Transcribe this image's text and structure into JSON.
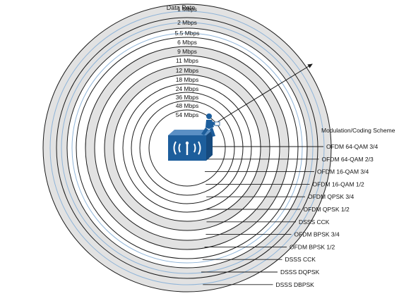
{
  "diagram": {
    "title": "Data Rate",
    "scheme_heading": "Modulation/Coding Scheme",
    "colors": {
      "band_shade": "#e2e2e2",
      "band_blue_line": "#8fb4d8",
      "ring_line": "#1a1a1a",
      "access_point": "#1d5e9c",
      "client": "#1d5e9c"
    },
    "icons": {
      "access_point": "wireless-access-point-icon",
      "client": "mobile-client-icon"
    },
    "rates": [
      "1 Mbps",
      "2 Mbps",
      "5.5 Mbps",
      "6 Mbps",
      "9 Mbps",
      "11 Mbps",
      "12 Mbps",
      "18 Mbps",
      "24 Mbps",
      "36 Mbps",
      "48 Mbps",
      "54 Mbps"
    ],
    "schemes": [
      "OFDM 64-QAM 3/4",
      "OFDM 64-QAM 2/3",
      "OFDM 16-QAM 3/4",
      "OFDM 16-QAM 1/2",
      "OFDM QPSK 3/4",
      "OFDM QPSK 1/2",
      "DSSS CCK",
      "OFDM BPSK 3/4",
      "OFDM BPSK 1/2",
      "DSSS CCK",
      "DSSS DQPSK",
      "DSSS DBPSK"
    ]
  }
}
